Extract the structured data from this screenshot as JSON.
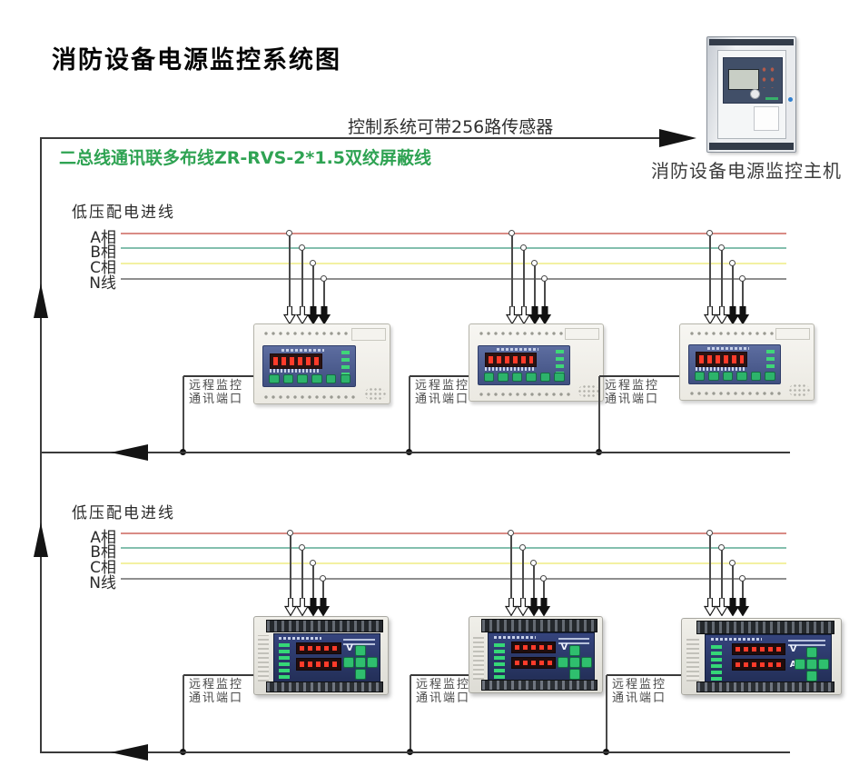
{
  "title": "消防设备电源监控系统图",
  "top": {
    "sensor_note": "控制系统可带256路传感器",
    "wiring_note": "二总线通讯联多布线ZR-RVS-2*1.5双绞屏蔽线",
    "host_label": "消防设备电源监控主机"
  },
  "sections": [
    {
      "incoming_label": "低压配电进线",
      "phases": [
        "A相",
        "B相",
        "C相",
        "N线"
      ]
    },
    {
      "incoming_label": "低压配电进线",
      "phases": [
        "A相",
        "B相",
        "C相",
        "N线"
      ]
    }
  ],
  "labels": {
    "remote_line1": "远程监控",
    "remote_line2": "通讯端口"
  },
  "device_panel": {
    "volt_label": "V",
    "amp_label": "A"
  },
  "colors": {
    "phase_a": "#d98b85",
    "phase_b": "#84bfae",
    "phase_c": "#f3f1a2",
    "phase_n": "#8f8f8f",
    "wiring_note_green": "#2fa353",
    "line": "#3a3a3a"
  }
}
